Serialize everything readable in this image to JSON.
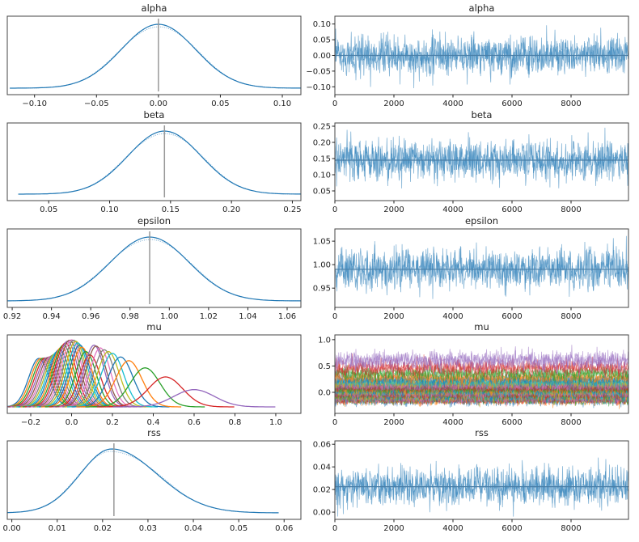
{
  "chart_data": [
    {
      "type": "line",
      "title": "alpha",
      "kind": "kde",
      "xlim": [
        -0.122,
        0.115
      ],
      "xticks": [
        -0.1,
        -0.05,
        0.0,
        0.05,
        0.1
      ],
      "xtick_labels": [
        "−0.10",
        "−0.05",
        "0.00",
        "0.05",
        "0.10"
      ],
      "mean": 0.0,
      "sd": 0.03,
      "reference_line": 0.0,
      "color": "#1f77b4"
    },
    {
      "type": "line",
      "title": "alpha",
      "kind": "trace",
      "xlim": [
        0,
        9945
      ],
      "ylim": [
        -0.125,
        0.125
      ],
      "xticks": [
        0,
        2000,
        4000,
        6000,
        8000
      ],
      "xtick_labels": [
        "0",
        "2000",
        "4000",
        "6000",
        "8000"
      ],
      "yticks": [
        0.1,
        0.05,
        0.0,
        -0.05,
        -0.1
      ],
      "ytick_labels": [
        "0.10",
        "0.05",
        "0.00",
        "−0.05",
        "−0.10"
      ],
      "mean": 0.0,
      "sd": 0.03,
      "color": "#1f77b4"
    },
    {
      "type": "line",
      "title": "beta",
      "kind": "kde",
      "xlim": [
        0.016,
        0.257
      ],
      "xticks": [
        0.05,
        0.1,
        0.15,
        0.2,
        0.25
      ],
      "xtick_labels": [
        "0.05",
        "0.10",
        "0.15",
        "0.20",
        "0.25"
      ],
      "mean": 0.145,
      "sd": 0.03,
      "reference_line": 0.145,
      "color": "#1f77b4"
    },
    {
      "type": "line",
      "title": "beta",
      "kind": "trace",
      "xlim": [
        0,
        9945
      ],
      "ylim": [
        0.02,
        0.26
      ],
      "xticks": [
        0,
        2000,
        4000,
        6000,
        8000
      ],
      "xtick_labels": [
        "0",
        "2000",
        "4000",
        "6000",
        "8000"
      ],
      "yticks": [
        0.25,
        0.2,
        0.15,
        0.1,
        0.05
      ],
      "ytick_labels": [
        "0.25",
        "0.20",
        "0.15",
        "0.10",
        "0.05"
      ],
      "mean": 0.145,
      "sd": 0.03,
      "color": "#1f77b4"
    },
    {
      "type": "line",
      "title": "epsilon",
      "kind": "kde",
      "xlim": [
        0.9175,
        1.067
      ],
      "xticks": [
        0.92,
        0.94,
        0.96,
        0.98,
        1.0,
        1.02,
        1.04,
        1.06
      ],
      "xtick_labels": [
        "0.92",
        "0.94",
        "0.96",
        "0.98",
        "1.00",
        "1.02",
        "1.04",
        "1.06"
      ],
      "mean": 0.99,
      "sd": 0.02,
      "reference_line": 0.99,
      "color": "#1f77b4"
    },
    {
      "type": "line",
      "title": "epsilon",
      "kind": "trace",
      "xlim": [
        0,
        9945
      ],
      "ylim": [
        0.909,
        1.076
      ],
      "xticks": [
        0,
        2000,
        4000,
        6000,
        8000
      ],
      "xtick_labels": [
        "0",
        "2000",
        "4000",
        "6000",
        "8000"
      ],
      "yticks": [
        1.05,
        1.0,
        0.95
      ],
      "ytick_labels": [
        "1.05",
        "1.00",
        "0.95"
      ],
      "mean": 0.99,
      "sd": 0.02,
      "color": "#1f77b4"
    },
    {
      "type": "line",
      "title": "mu",
      "kind": "kde-multi",
      "xlim": [
        -0.315,
        1.123
      ],
      "xticks": [
        -0.2,
        0.0,
        0.2,
        0.4,
        0.6,
        0.8,
        1.0
      ],
      "xtick_labels": [
        "−0.2",
        "0.0",
        "0.2",
        "0.4",
        "0.6",
        "0.8",
        "1.0"
      ],
      "means": [
        -0.16,
        -0.15,
        -0.14,
        -0.13,
        -0.12,
        -0.11,
        -0.1,
        -0.09,
        -0.08,
        -0.07,
        -0.06,
        -0.05,
        -0.04,
        -0.03,
        -0.02,
        -0.01,
        0.0,
        0.01,
        0.02,
        0.03,
        0.04,
        0.05,
        0.07,
        0.09,
        0.11,
        0.12,
        0.14,
        0.16,
        0.18,
        0.2,
        0.24,
        0.28,
        0.36,
        0.46,
        0.6
      ],
      "sd": 0.05,
      "colors": [
        "#1f77b4",
        "#ff7f0e",
        "#2ca02c",
        "#d62728",
        "#9467bd",
        "#8c564b",
        "#e377c2",
        "#7f7f7f",
        "#bcbd22",
        "#17becf"
      ]
    },
    {
      "type": "line",
      "title": "mu",
      "kind": "trace-multi",
      "xlim": [
        0,
        9945
      ],
      "ylim": [
        -0.4,
        1.09
      ],
      "xticks": [
        0,
        2000,
        4000,
        6000,
        8000
      ],
      "xtick_labels": [
        "0",
        "2000",
        "4000",
        "6000",
        "8000"
      ],
      "yticks": [
        1.0,
        0.5,
        0.0
      ],
      "ytick_labels": [
        "1.0",
        "0.5",
        "0.0"
      ]
    },
    {
      "type": "line",
      "title": "rss",
      "kind": "kde",
      "xlim": [
        -0.001,
        0.0637
      ],
      "xticks": [
        0.0,
        0.01,
        0.02,
        0.03,
        0.04,
        0.05,
        0.06
      ],
      "xtick_labels": [
        "0.00",
        "0.01",
        "0.02",
        "0.03",
        "0.04",
        "0.05",
        "0.06"
      ],
      "mean": 0.022,
      "sd": 0.008,
      "skew": true,
      "reference_line": 0.0225,
      "color": "#1f77b4"
    },
    {
      "type": "line",
      "title": "rss",
      "kind": "trace",
      "xlim": [
        0,
        9945
      ],
      "ylim": [
        -0.0064,
        0.063
      ],
      "xticks": [
        0,
        2000,
        4000,
        6000,
        8000
      ],
      "xtick_labels": [
        "0",
        "2000",
        "4000",
        "6000",
        "8000"
      ],
      "yticks": [
        0.06,
        0.04,
        0.02,
        0.0
      ],
      "ytick_labels": [
        "0.06",
        "0.04",
        "0.02",
        "0.00"
      ],
      "mean": 0.0225,
      "sd": 0.008,
      "color": "#1f77b4"
    }
  ]
}
